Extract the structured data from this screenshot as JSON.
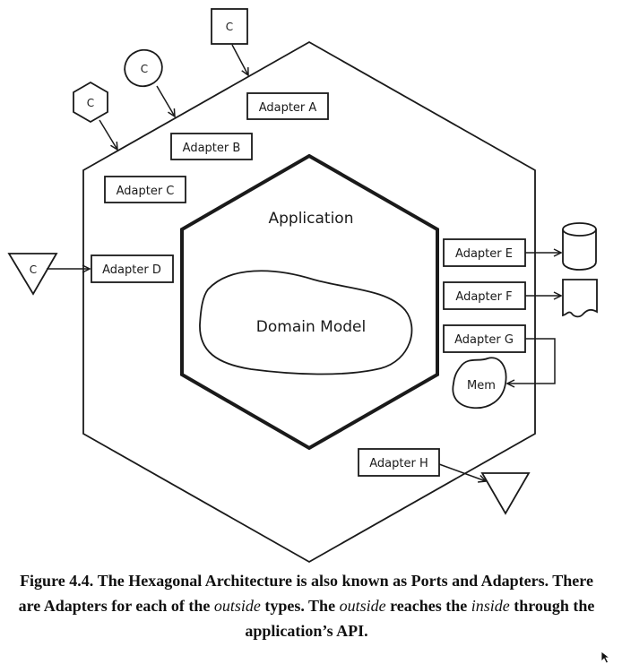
{
  "diagram": {
    "outer_client_label": "C",
    "application_label": "Application",
    "domain_model_label": "Domain Model",
    "adapters": {
      "a": "Adapter A",
      "b": "Adapter B",
      "c": "Adapter C",
      "d": "Adapter D",
      "e": "Adapter E",
      "f": "Adapter F",
      "g": "Adapter G",
      "h": "Adapter H"
    },
    "mem_label": "Mem"
  },
  "caption": {
    "figure_label": "Figure 4.4.",
    "part1": "The Hexagonal Architecture is also known as Ports and Adapters. There are Adapters for each of the",
    "outside1": "outside",
    "part2": "types. The",
    "outside2": "outside",
    "part3": "reaches the",
    "inside": "inside",
    "part4": "through the application’s API."
  }
}
